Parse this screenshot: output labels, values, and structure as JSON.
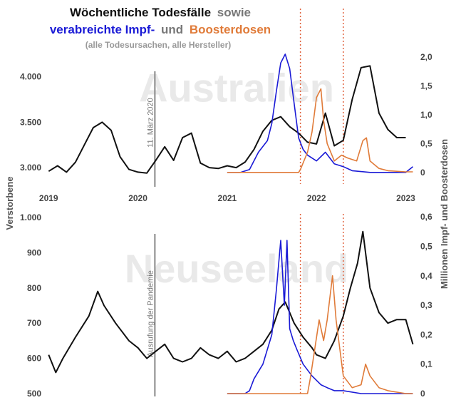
{
  "title": {
    "part1": "Wöchentliche Todesfälle",
    "part2": "sowie",
    "part3": "verabreichte Impf-",
    "part4": "und",
    "part5": "Boosterdosen",
    "subtitle": "(alle Todesursachen, alle Hersteller)"
  },
  "colors": {
    "deaths": "#111111",
    "vaccine": "#1a1ad6",
    "booster": "#e07b39",
    "marker": "#e0603a",
    "watermark": "#e9e9e9",
    "event_line": "#888888"
  },
  "chart_data": [
    {
      "type": "line",
      "panel": "Australien",
      "watermark": "Australien",
      "x_range": [
        2018.95,
        2023.1
      ],
      "x_ticks": [
        "2019",
        "2020",
        "2021",
        "2022",
        "2023"
      ],
      "y_left": {
        "label": "Verstorbene",
        "range": [
          2820,
          4280
        ],
        "ticks": [
          "3.000",
          "3.500",
          "4.000"
        ]
      },
      "y_right": {
        "label": "Millionen Impf- und Boosterdosen",
        "range": [
          -0.2,
          2.1
        ],
        "ticks": [
          "0",
          "0,5",
          "1,0",
          "1,5",
          "2,0"
        ]
      },
      "event": {
        "label": "11. März 2020",
        "x": 2020.19
      },
      "markers_x": [
        2021.82,
        2022.3
      ],
      "series": [
        {
          "key": "deaths",
          "axis": "left",
          "x": [
            2019.0,
            2019.1,
            2019.2,
            2019.3,
            2019.4,
            2019.5,
            2019.6,
            2019.7,
            2019.8,
            2019.9,
            2020.0,
            2020.1,
            2020.2,
            2020.3,
            2020.4,
            2020.5,
            2020.6,
            2020.7,
            2020.8,
            2020.9,
            2021.0,
            2021.1,
            2021.2,
            2021.3,
            2021.4,
            2021.5,
            2021.6,
            2021.7,
            2021.8,
            2021.9,
            2022.0,
            2022.1,
            2022.2,
            2022.3,
            2022.4,
            2022.5,
            2022.6,
            2022.7,
            2022.8,
            2022.9,
            2023.0
          ],
          "values": [
            2960,
            3020,
            2950,
            3060,
            3250,
            3440,
            3500,
            3410,
            3120,
            2980,
            2950,
            2940,
            3080,
            3230,
            3080,
            3330,
            3380,
            3050,
            3000,
            2990,
            3020,
            3000,
            3060,
            3200,
            3400,
            3520,
            3560,
            3450,
            3380,
            3280,
            3260,
            3600,
            3240,
            3300,
            3750,
            4100,
            4120,
            3600,
            3420,
            3330,
            3330
          ]
        },
        {
          "key": "vaccine",
          "axis": "right",
          "x": [
            2021.0,
            2021.15,
            2021.25,
            2021.35,
            2021.45,
            2021.5,
            2021.55,
            2021.6,
            2021.65,
            2021.7,
            2021.75,
            2021.8,
            2021.85,
            2021.9,
            2022.0,
            2022.1,
            2022.2,
            2022.3,
            2022.4,
            2022.6,
            2022.8,
            2023.0,
            2023.08
          ],
          "values": [
            0,
            0,
            0.05,
            0.35,
            0.55,
            0.85,
            1.4,
            1.9,
            2.05,
            1.8,
            1.2,
            0.6,
            0.4,
            0.3,
            0.2,
            0.35,
            0.15,
            0.1,
            0.03,
            0.0,
            0.0,
            0.0,
            0.1
          ]
        },
        {
          "key": "booster",
          "axis": "right",
          "x": [
            2021.0,
            2021.5,
            2021.8,
            2021.82,
            2021.9,
            2021.95,
            2022.0,
            2022.05,
            2022.08,
            2022.12,
            2022.2,
            2022.28,
            2022.35,
            2022.45,
            2022.52,
            2022.56,
            2022.6,
            2022.7,
            2022.8,
            2023.0,
            2023.08
          ],
          "values": [
            0,
            0,
            0,
            0.05,
            0.35,
            0.7,
            1.3,
            1.45,
            0.9,
            0.5,
            0.2,
            0.3,
            0.25,
            0.2,
            0.55,
            0.6,
            0.2,
            0.07,
            0.03,
            0.01,
            0.01
          ]
        }
      ]
    },
    {
      "type": "line",
      "panel": "Neuseeland",
      "watermark": "Neuseeland",
      "x_range": [
        2018.95,
        2023.1
      ],
      "y_left": {
        "label": "Verstorbene",
        "range": [
          500,
          1010
        ],
        "ticks": [
          "500",
          "600",
          "700",
          "800",
          "900",
          "1.000"
        ]
      },
      "y_right": {
        "label": "Millionen Impf- und Boosterdosen",
        "range": [
          0,
          0.61
        ],
        "ticks": [
          "0",
          "0,1",
          "0,2",
          "0,3",
          "0,4",
          "0,5",
          "0,6"
        ]
      },
      "event": {
        "label": "Ausrufung der Pandemie",
        "x": 2020.19
      },
      "markers_x": [
        2021.82,
        2022.3
      ],
      "series": [
        {
          "key": "deaths",
          "axis": "left",
          "x": [
            2019.0,
            2019.08,
            2019.16,
            2019.3,
            2019.45,
            2019.55,
            2019.62,
            2019.75,
            2019.9,
            2020.0,
            2020.1,
            2020.2,
            2020.3,
            2020.4,
            2020.5,
            2020.6,
            2020.7,
            2020.8,
            2020.9,
            2021.0,
            2021.1,
            2021.2,
            2021.3,
            2021.4,
            2021.5,
            2021.58,
            2021.65,
            2021.75,
            2021.85,
            2021.95,
            2022.0,
            2022.1,
            2022.2,
            2022.3,
            2022.38,
            2022.46,
            2022.52,
            2022.6,
            2022.7,
            2022.8,
            2022.9,
            2023.0,
            2023.08
          ],
          "values": [
            610,
            560,
            600,
            660,
            720,
            790,
            750,
            700,
            650,
            630,
            600,
            620,
            640,
            600,
            590,
            600,
            630,
            610,
            600,
            620,
            590,
            600,
            620,
            640,
            680,
            740,
            760,
            700,
            660,
            630,
            610,
            600,
            650,
            720,
            800,
            870,
            960,
            800,
            730,
            700,
            710,
            710,
            640
          ]
        },
        {
          "key": "vaccine",
          "axis": "right",
          "x": [
            2021.0,
            2021.2,
            2021.25,
            2021.3,
            2021.4,
            2021.5,
            2021.55,
            2021.6,
            2021.64,
            2021.67,
            2021.7,
            2021.74,
            2021.78,
            2021.85,
            2021.95,
            2022.05,
            2022.12,
            2022.2,
            2022.3,
            2022.5,
            2022.8,
            2023.08
          ],
          "values": [
            0,
            0,
            0.01,
            0.05,
            0.1,
            0.2,
            0.35,
            0.52,
            0.3,
            0.52,
            0.22,
            0.18,
            0.15,
            0.1,
            0.06,
            0.03,
            0.02,
            0.01,
            0.01,
            0.0,
            0.0,
            0.0
          ]
        },
        {
          "key": "booster",
          "axis": "right",
          "x": [
            2021.0,
            2021.9,
            2021.93,
            2021.98,
            2022.03,
            2022.08,
            2022.12,
            2022.18,
            2022.22,
            2022.3,
            2022.4,
            2022.5,
            2022.55,
            2022.6,
            2022.7,
            2022.8,
            2023.0,
            2023.08
          ],
          "values": [
            0,
            0,
            0.05,
            0.15,
            0.25,
            0.18,
            0.25,
            0.4,
            0.25,
            0.06,
            0.02,
            0.03,
            0.1,
            0.06,
            0.02,
            0.01,
            0.0,
            0.0
          ]
        }
      ]
    }
  ]
}
